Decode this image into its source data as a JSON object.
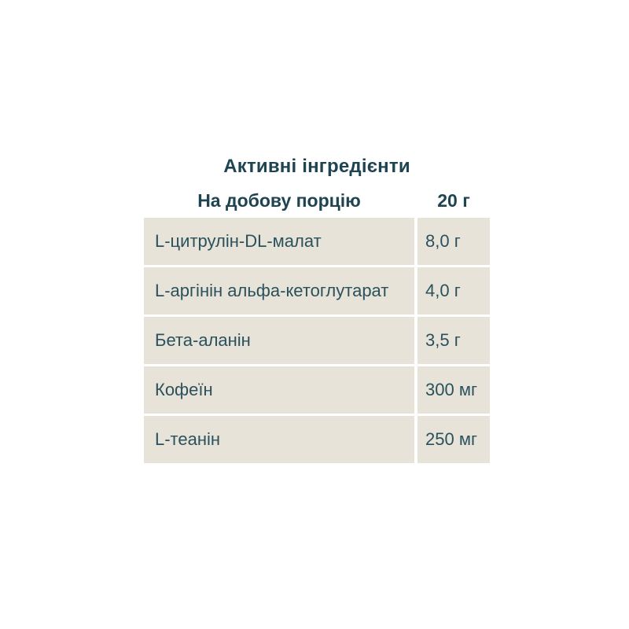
{
  "table": {
    "title": "Активні інгредієнти",
    "header": {
      "label": "На добову порцію",
      "value": "20 г"
    },
    "rows": [
      {
        "label": "L-цитрулін-DL-малат",
        "value": "8,0 г"
      },
      {
        "label": "L-аргінін альфа-кетоглутарат",
        "value": "4,0 г"
      },
      {
        "label": "Бета-аланін",
        "value": "3,5 г"
      },
      {
        "label": "Кофеїн",
        "value": "300 мг"
      },
      {
        "label": "L-теанін",
        "value": "250 мг"
      }
    ],
    "colors": {
      "cell_background": "#e8e3d9",
      "heading_text": "#1e4451",
      "cell_text": "#2a515c",
      "page_background": "#ffffff"
    }
  }
}
